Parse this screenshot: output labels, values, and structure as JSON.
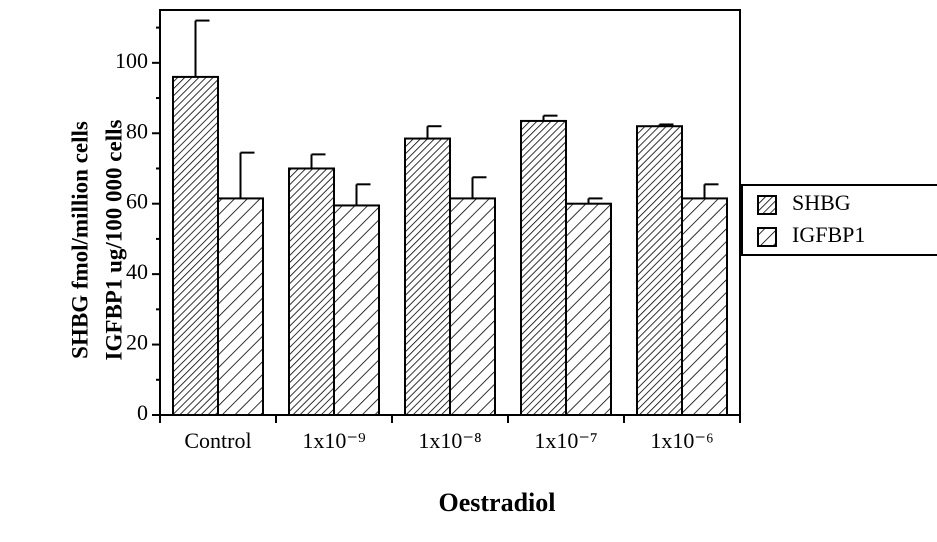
{
  "chart_data": {
    "type": "bar",
    "ylabel": [
      "SHBG fmol/million cells",
      "IGFBP1 ug/100 000 cells"
    ],
    "xlabel": "Oestradiol",
    "categories": [
      "Control",
      "1x10⁻⁹",
      "1x10⁻⁸",
      "1x10⁻⁷",
      "1x10⁻⁶"
    ],
    "series": [
      {
        "name": "SHBG",
        "color": "#000000",
        "hatch": "dense",
        "values": [
          96,
          70,
          78.5,
          83.5,
          82
        ],
        "errors": [
          16,
          4,
          3.5,
          1.5,
          0.5
        ]
      },
      {
        "name": "IGFBP1",
        "color": "#000000",
        "hatch": "sparse",
        "values": [
          61.5,
          59.5,
          61.5,
          60,
          61.5
        ],
        "errors": [
          13,
          6,
          6,
          1.5,
          4
        ]
      }
    ],
    "ylim": [
      0,
      115
    ],
    "yticks": [
      0,
      20,
      40,
      60,
      80,
      100
    ],
    "yticks_minor": [
      10,
      30,
      50,
      70,
      90,
      110
    ],
    "legend": "right"
  }
}
